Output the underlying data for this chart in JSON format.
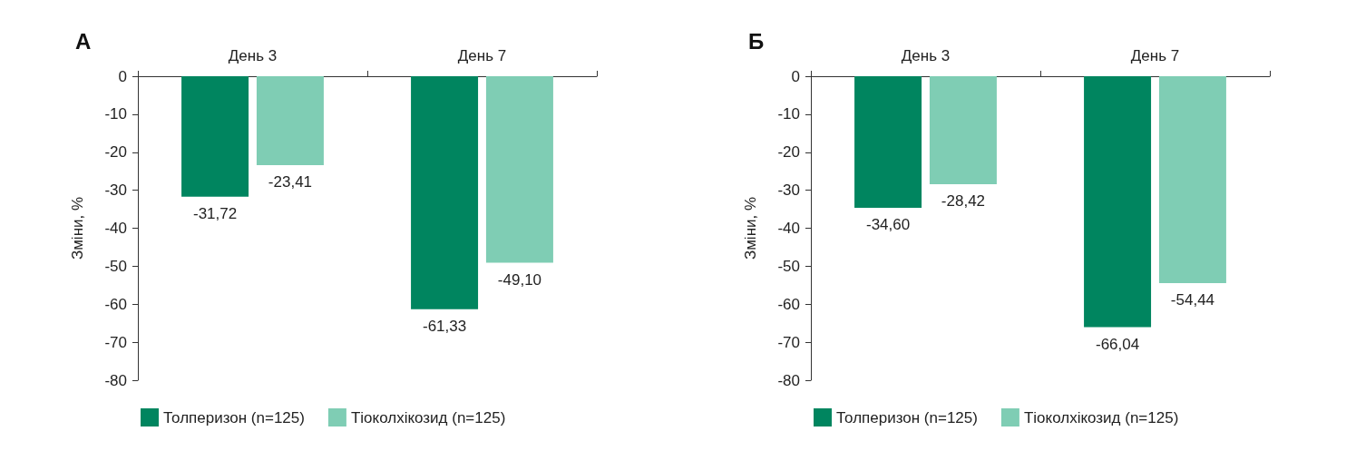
{
  "chart_data": [
    {
      "type": "bar",
      "title": "А",
      "ylabel": "Зміни, %",
      "categories": [
        "День 3",
        "День 7"
      ],
      "ylim": [
        -80,
        0
      ],
      "yticks": [
        -80,
        -70,
        -60,
        -50,
        -40,
        -30,
        -20,
        -10,
        0
      ],
      "grid": false,
      "legend": "bottom",
      "series": [
        {
          "name": "Толперизон (n=125)",
          "color": "#00855f",
          "values": [
            -31.72,
            -61.33
          ],
          "value_labels": [
            "-31,72",
            "-61,33"
          ]
        },
        {
          "name": "Тіоколхікозид (n=125)",
          "color": "#7fcdb4",
          "values": [
            -23.41,
            -49.1
          ],
          "value_labels": [
            "-23,41",
            "-49,10"
          ]
        }
      ]
    },
    {
      "type": "bar",
      "title": "Б",
      "ylabel": "Зміни, %",
      "categories": [
        "День 3",
        "День 7"
      ],
      "ylim": [
        -80,
        0
      ],
      "yticks": [
        -80,
        -70,
        -60,
        -50,
        -40,
        -30,
        -20,
        -10,
        0
      ],
      "grid": false,
      "legend": "bottom",
      "series": [
        {
          "name": "Толперизон (n=125)",
          "color": "#00855f",
          "values": [
            -34.6,
            -66.04
          ],
          "value_labels": [
            "-34,60",
            "-66,04"
          ]
        },
        {
          "name": "Тіоколхікозид (n=125)",
          "color": "#7fcdb4",
          "values": [
            -28.42,
            -54.44
          ],
          "value_labels": [
            "-28,42",
            "-54,44"
          ]
        }
      ]
    }
  ]
}
